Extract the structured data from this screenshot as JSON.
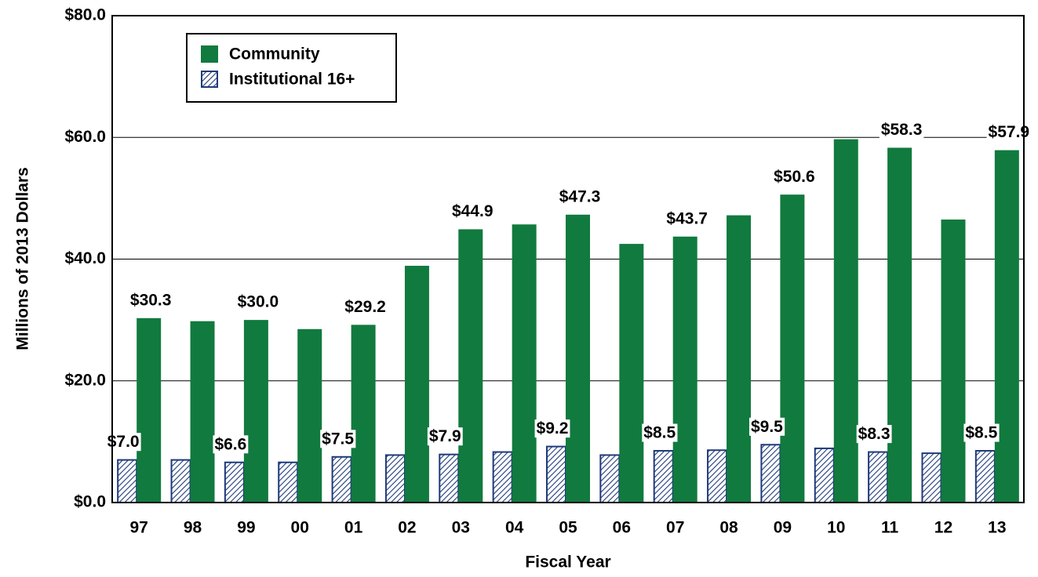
{
  "chart_data": {
    "type": "bar",
    "y_label": "Millions of 2013 Dollars",
    "x_label": "Fiscal Year",
    "categories": [
      "97",
      "98",
      "99",
      "00",
      "01",
      "02",
      "03",
      "04",
      "05",
      "06",
      "07",
      "08",
      "09",
      "10",
      "11",
      "12",
      "13"
    ],
    "series": [
      {
        "name": "Community",
        "color": "#117a3e",
        "values": [
          30.3,
          29.8,
          30.0,
          28.5,
          29.2,
          38.9,
          44.9,
          45.7,
          47.3,
          42.5,
          43.7,
          47.2,
          50.6,
          59.7,
          58.3,
          46.5,
          57.9
        ],
        "value_labels": [
          "$30.3",
          null,
          "$30.0",
          null,
          "$29.2",
          null,
          "$44.9",
          null,
          "$47.3",
          null,
          "$43.7",
          null,
          "$50.6",
          null,
          "$58.3",
          null,
          "$57.9"
        ]
      },
      {
        "name": "Institutional 16+",
        "color": "#1f3a7a",
        "values": [
          7.0,
          7.0,
          6.6,
          6.6,
          7.5,
          7.8,
          7.9,
          8.3,
          9.2,
          7.8,
          8.5,
          8.6,
          9.5,
          8.9,
          8.3,
          8.1,
          8.5
        ],
        "value_labels": [
          "$7.0",
          null,
          "$6.6",
          null,
          "$7.5",
          null,
          "$7.9",
          null,
          "$9.2",
          null,
          "$8.5",
          null,
          "$9.5",
          null,
          "$8.3",
          null,
          "$8.5"
        ]
      }
    ],
    "ylim": [
      0,
      80
    ],
    "yticks": [
      {
        "value": 0,
        "label": "$0.0"
      },
      {
        "value": 20,
        "label": "$20.0"
      },
      {
        "value": 40,
        "label": "$40.0"
      },
      {
        "value": 60,
        "label": "$60.0"
      },
      {
        "value": 80,
        "label": "$80.0"
      }
    ],
    "grid": true,
    "legend": "upper left"
  }
}
